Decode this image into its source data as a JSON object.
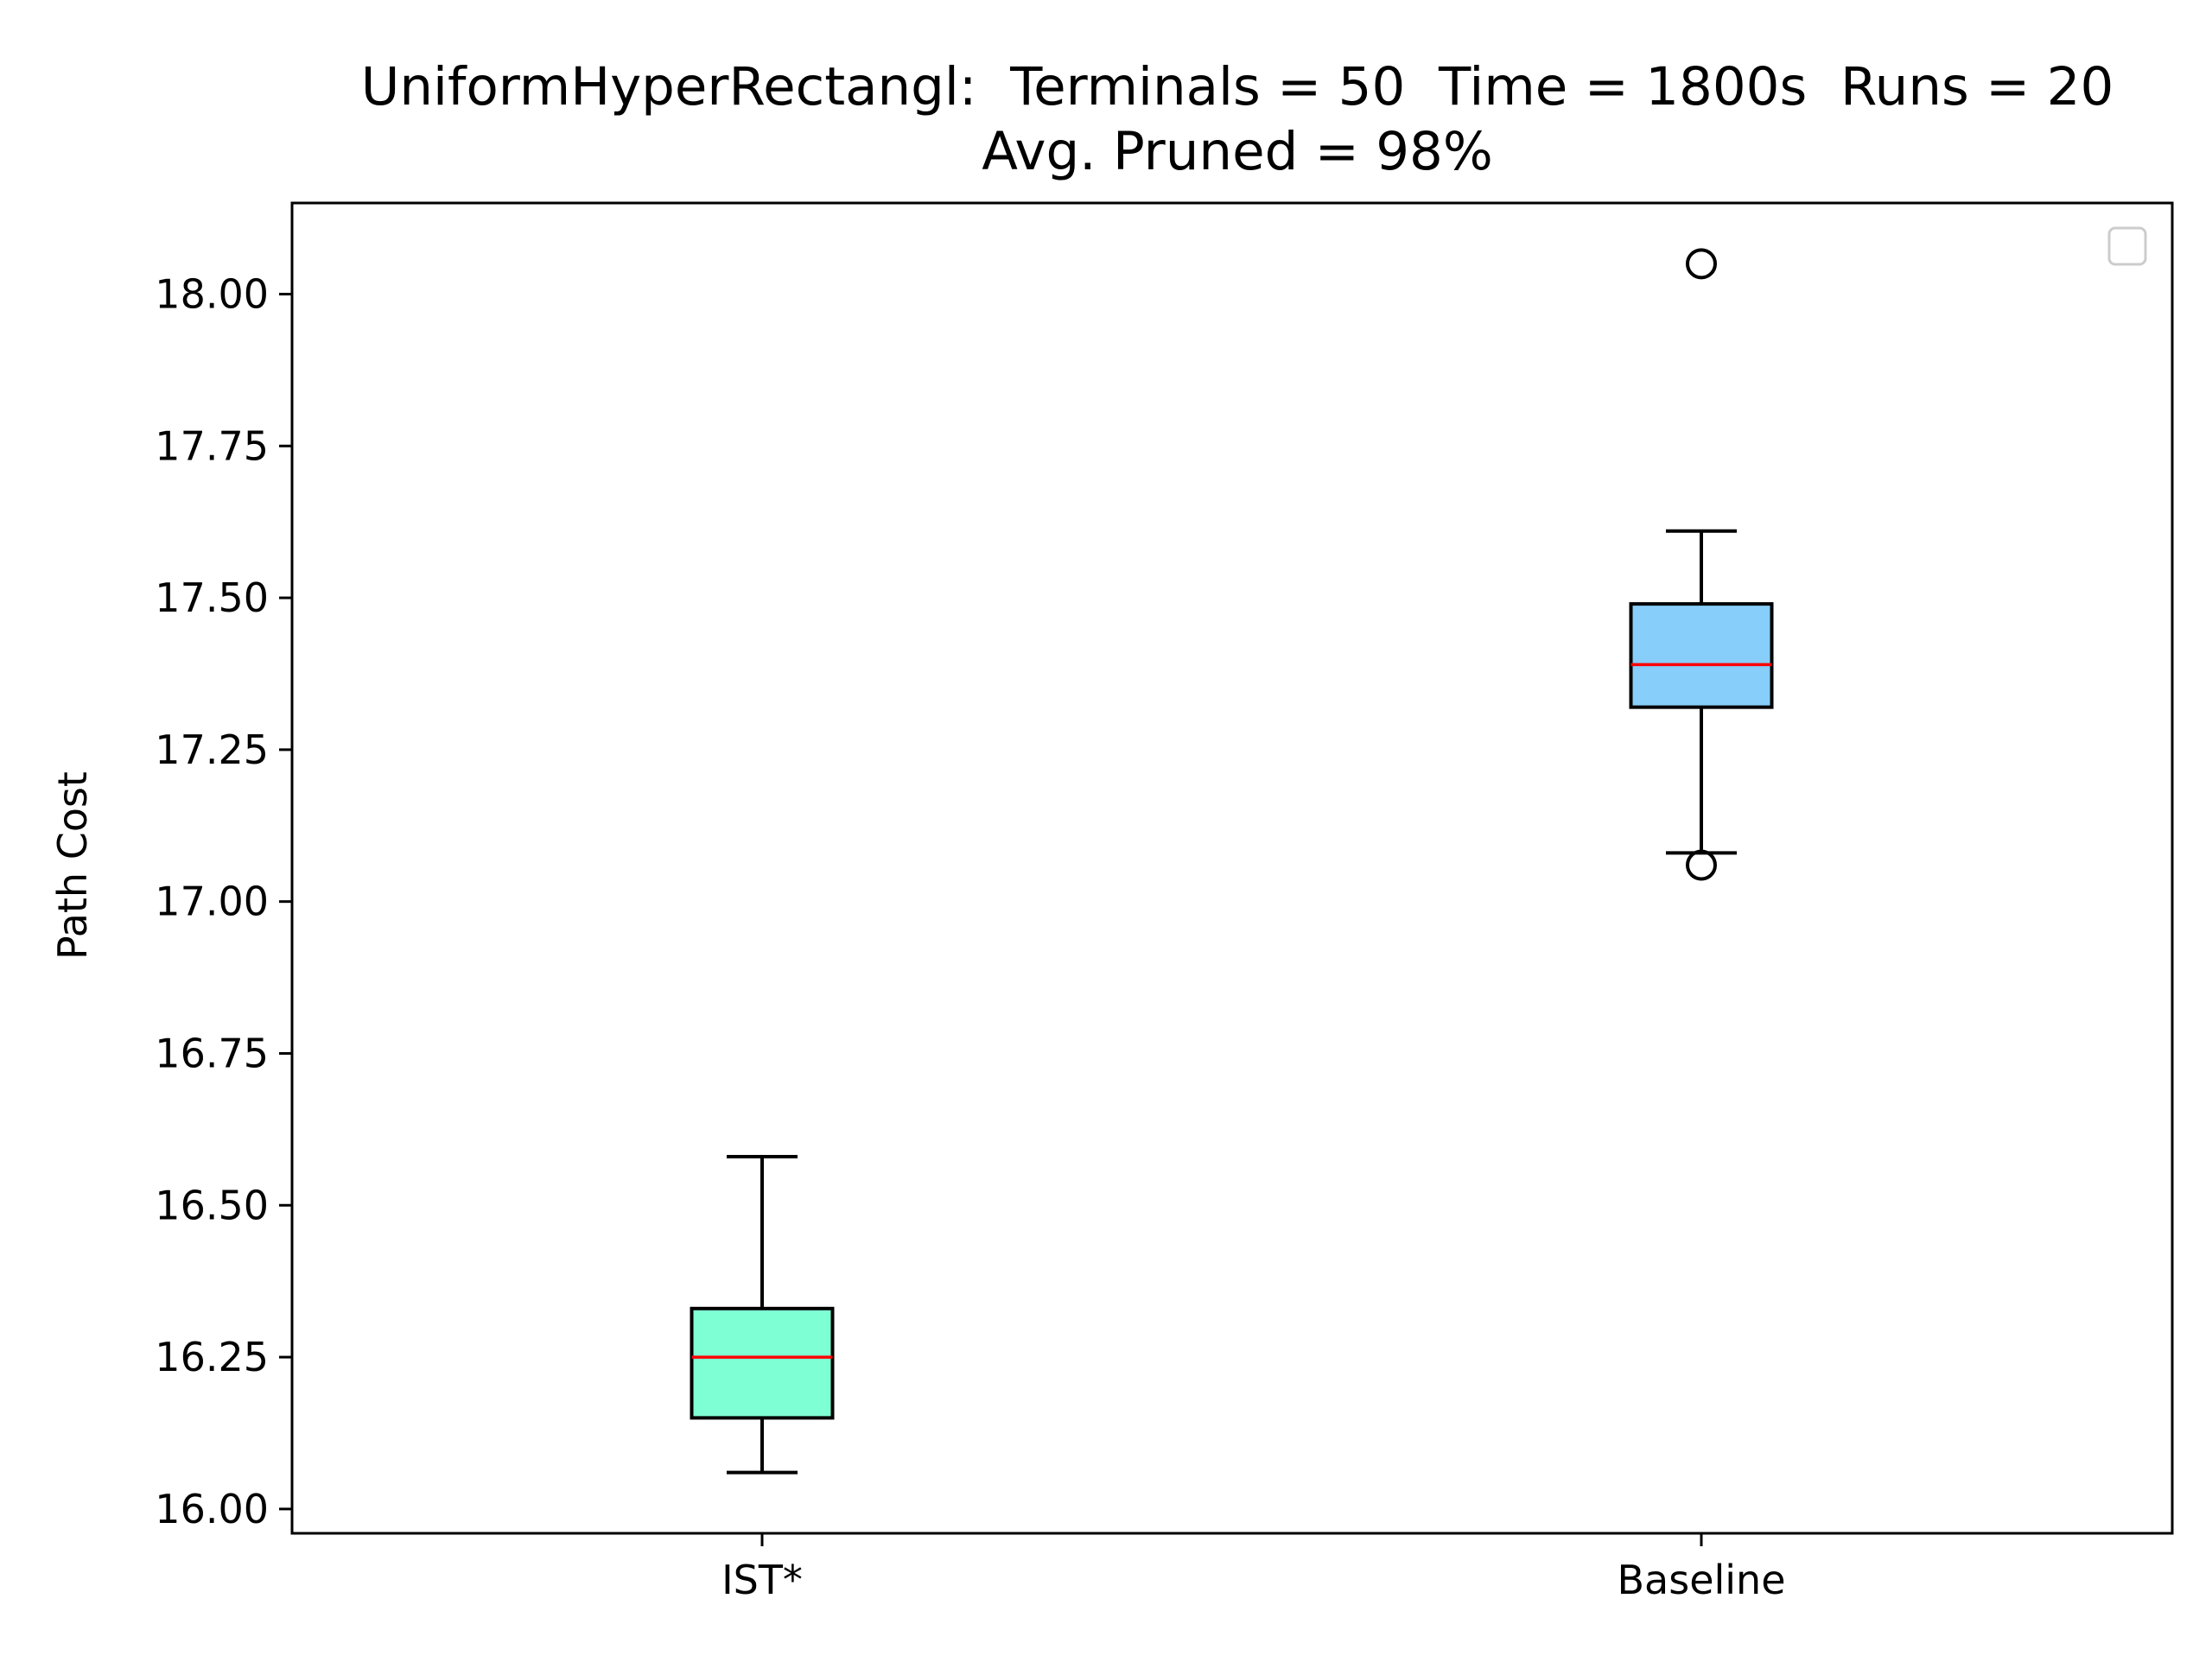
{
  "chart_data": {
    "type": "boxplot",
    "title": "UniformHyperRectangl:  Terminals = 50  Time = 1800s  Runs = 20",
    "subtitle": "Avg. Pruned = 98%",
    "xlabel": "",
    "ylabel": "Path Cost",
    "ylim": [
      15.96,
      18.15
    ],
    "yticks": [
      "16.00",
      "16.25",
      "16.50",
      "16.75",
      "17.00",
      "17.25",
      "17.50",
      "17.75",
      "18.00"
    ],
    "ytick_values": [
      16.0,
      16.25,
      16.5,
      16.75,
      17.0,
      17.25,
      17.5,
      17.75,
      18.0
    ],
    "grid": false,
    "legend": "top-right (empty)",
    "categories": [
      "IST*",
      "Baseline"
    ],
    "boxes": [
      {
        "label": "IST*",
        "whisker_low": 16.06,
        "q1": 16.15,
        "median": 16.25,
        "q3": 16.33,
        "whisker_high": 16.58,
        "outliers": [],
        "color": "#7fffd4"
      },
      {
        "label": "Baseline",
        "whisker_low": 17.08,
        "q1": 17.32,
        "median": 17.39,
        "q3": 17.49,
        "whisker_high": 17.61,
        "outliers": [
          17.06,
          18.05
        ],
        "color": "#87cefa"
      }
    ],
    "median_color": "#ff0000"
  }
}
